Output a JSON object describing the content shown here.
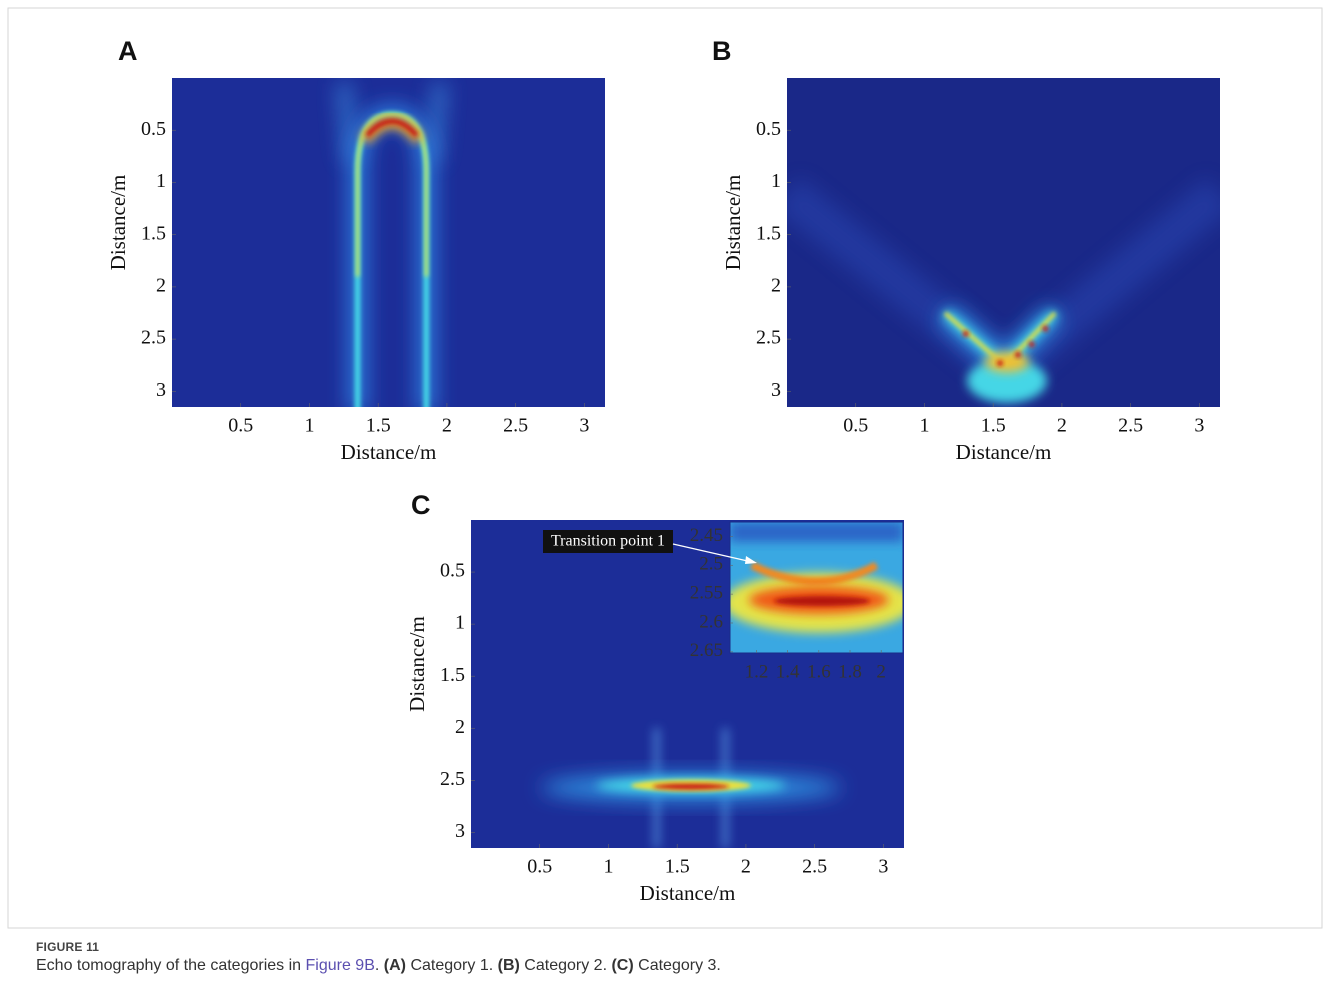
{
  "figure": {
    "panels": [
      {
        "label": "A",
        "xlabel": "Distance/m",
        "ylabel": "Distance/m",
        "xlim": [
          0,
          3.15
        ],
        "ylim": [
          0,
          3.15
        ],
        "xticks": [
          0.5,
          1,
          1.5,
          2,
          2.5,
          3
        ],
        "yticks": [
          0.5,
          1,
          1.5,
          2,
          2.5,
          3
        ]
      },
      {
        "label": "B",
        "xlabel": "Distance/m",
        "ylabel": "Distance/m",
        "xlim": [
          0,
          3.15
        ],
        "ylim": [
          0,
          3.15
        ],
        "xticks": [
          0.5,
          1,
          1.5,
          2,
          2.5,
          3
        ],
        "yticks": [
          0.5,
          1,
          1.5,
          2,
          2.5,
          3
        ]
      },
      {
        "label": "C",
        "xlabel": "Distance/m",
        "ylabel": "Distance/m",
        "xlim": [
          0,
          3.15
        ],
        "ylim": [
          0,
          3.15
        ],
        "xticks": [
          0.5,
          1,
          1.5,
          2,
          2.5,
          3
        ],
        "yticks": [
          0.5,
          1,
          1.5,
          2,
          2.5,
          3
        ],
        "inset": {
          "xlim": [
            1.03,
            2.14
          ],
          "ylim": [
            2.425,
            2.652
          ],
          "xticks": [
            1.2,
            1.4,
            1.6,
            1.8,
            2
          ],
          "yticks": [
            2.45,
            2.5,
            2.55,
            2.6,
            2.65
          ],
          "annotation": "Transition point 1"
        }
      }
    ]
  },
  "caption": {
    "label": "FIGURE 11",
    "lead": "Echo tomography of the categories in",
    "link": "Figure 9B",
    "link_end": ".",
    "items": [
      {
        "tag": "(A)",
        "text": "Category 1."
      },
      {
        "tag": "(B)",
        "text": "Category 2."
      },
      {
        "tag": "(C)",
        "text": "Category 3."
      }
    ]
  }
}
